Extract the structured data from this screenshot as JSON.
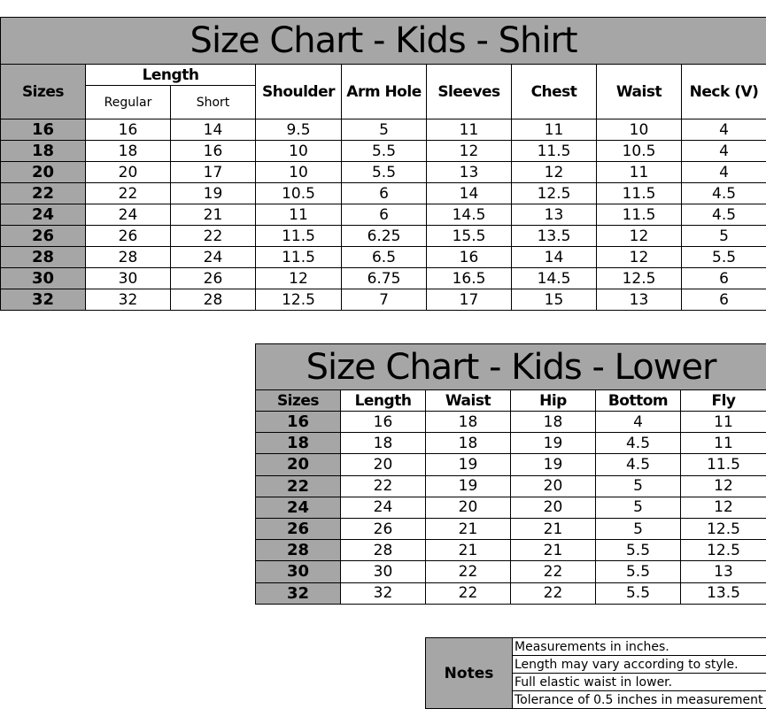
{
  "shirt": {
    "title": "Size Chart - Kids - Shirt",
    "headers": {
      "sizes": "Sizes",
      "length": "Length",
      "regular": "Regular",
      "short": "Short",
      "shoulder": "Shoulder",
      "arm_hole": "Arm Hole",
      "sleeves": "Sleeves",
      "chest": "Chest",
      "waist": "Waist",
      "neck": "Neck (V)"
    },
    "rows": [
      [
        "16",
        "16",
        "14",
        "9.5",
        "5",
        "11",
        "11",
        "10",
        "4"
      ],
      [
        "18",
        "18",
        "16",
        "10",
        "5.5",
        "12",
        "11.5",
        "10.5",
        "4"
      ],
      [
        "20",
        "20",
        "17",
        "10",
        "5.5",
        "13",
        "12",
        "11",
        "4"
      ],
      [
        "22",
        "22",
        "19",
        "10.5",
        "6",
        "14",
        "12.5",
        "11.5",
        "4.5"
      ],
      [
        "24",
        "24",
        "21",
        "11",
        "6",
        "14.5",
        "13",
        "11.5",
        "4.5"
      ],
      [
        "26",
        "26",
        "22",
        "11.5",
        "6.25",
        "15.5",
        "13.5",
        "12",
        "5"
      ],
      [
        "28",
        "28",
        "24",
        "11.5",
        "6.5",
        "16",
        "14",
        "12",
        "5.5"
      ],
      [
        "30",
        "30",
        "26",
        "12",
        "6.75",
        "16.5",
        "14.5",
        "12.5",
        "6"
      ],
      [
        "32",
        "32",
        "28",
        "12.5",
        "7",
        "17",
        "15",
        "13",
        "6"
      ]
    ]
  },
  "lower": {
    "title": "Size Chart - Kids - Lower",
    "headers": [
      "Sizes",
      "Length",
      "Waist",
      "Hip",
      "Bottom",
      "Fly"
    ],
    "rows": [
      [
        "16",
        "16",
        "18",
        "18",
        "4",
        "11"
      ],
      [
        "18",
        "18",
        "18",
        "19",
        "4.5",
        "11"
      ],
      [
        "20",
        "20",
        "19",
        "19",
        "4.5",
        "11.5"
      ],
      [
        "22",
        "22",
        "19",
        "20",
        "5",
        "12"
      ],
      [
        "24",
        "24",
        "20",
        "20",
        "5",
        "12"
      ],
      [
        "26",
        "26",
        "21",
        "21",
        "5",
        "12.5"
      ],
      [
        "28",
        "28",
        "21",
        "21",
        "5.5",
        "12.5"
      ],
      [
        "30",
        "30",
        "22",
        "22",
        "5.5",
        "13"
      ],
      [
        "32",
        "32",
        "22",
        "22",
        "5.5",
        "13.5"
      ]
    ]
  },
  "notes": {
    "label": "Notes",
    "items": [
      "Measurements in inches.",
      "Length may vary according to style.",
      "Full elastic waist in lower.",
      "Tolerance of 0.5 inches in measurement"
    ]
  },
  "colors": {
    "header_gray": "#a6a6a6",
    "border": "#000000"
  }
}
